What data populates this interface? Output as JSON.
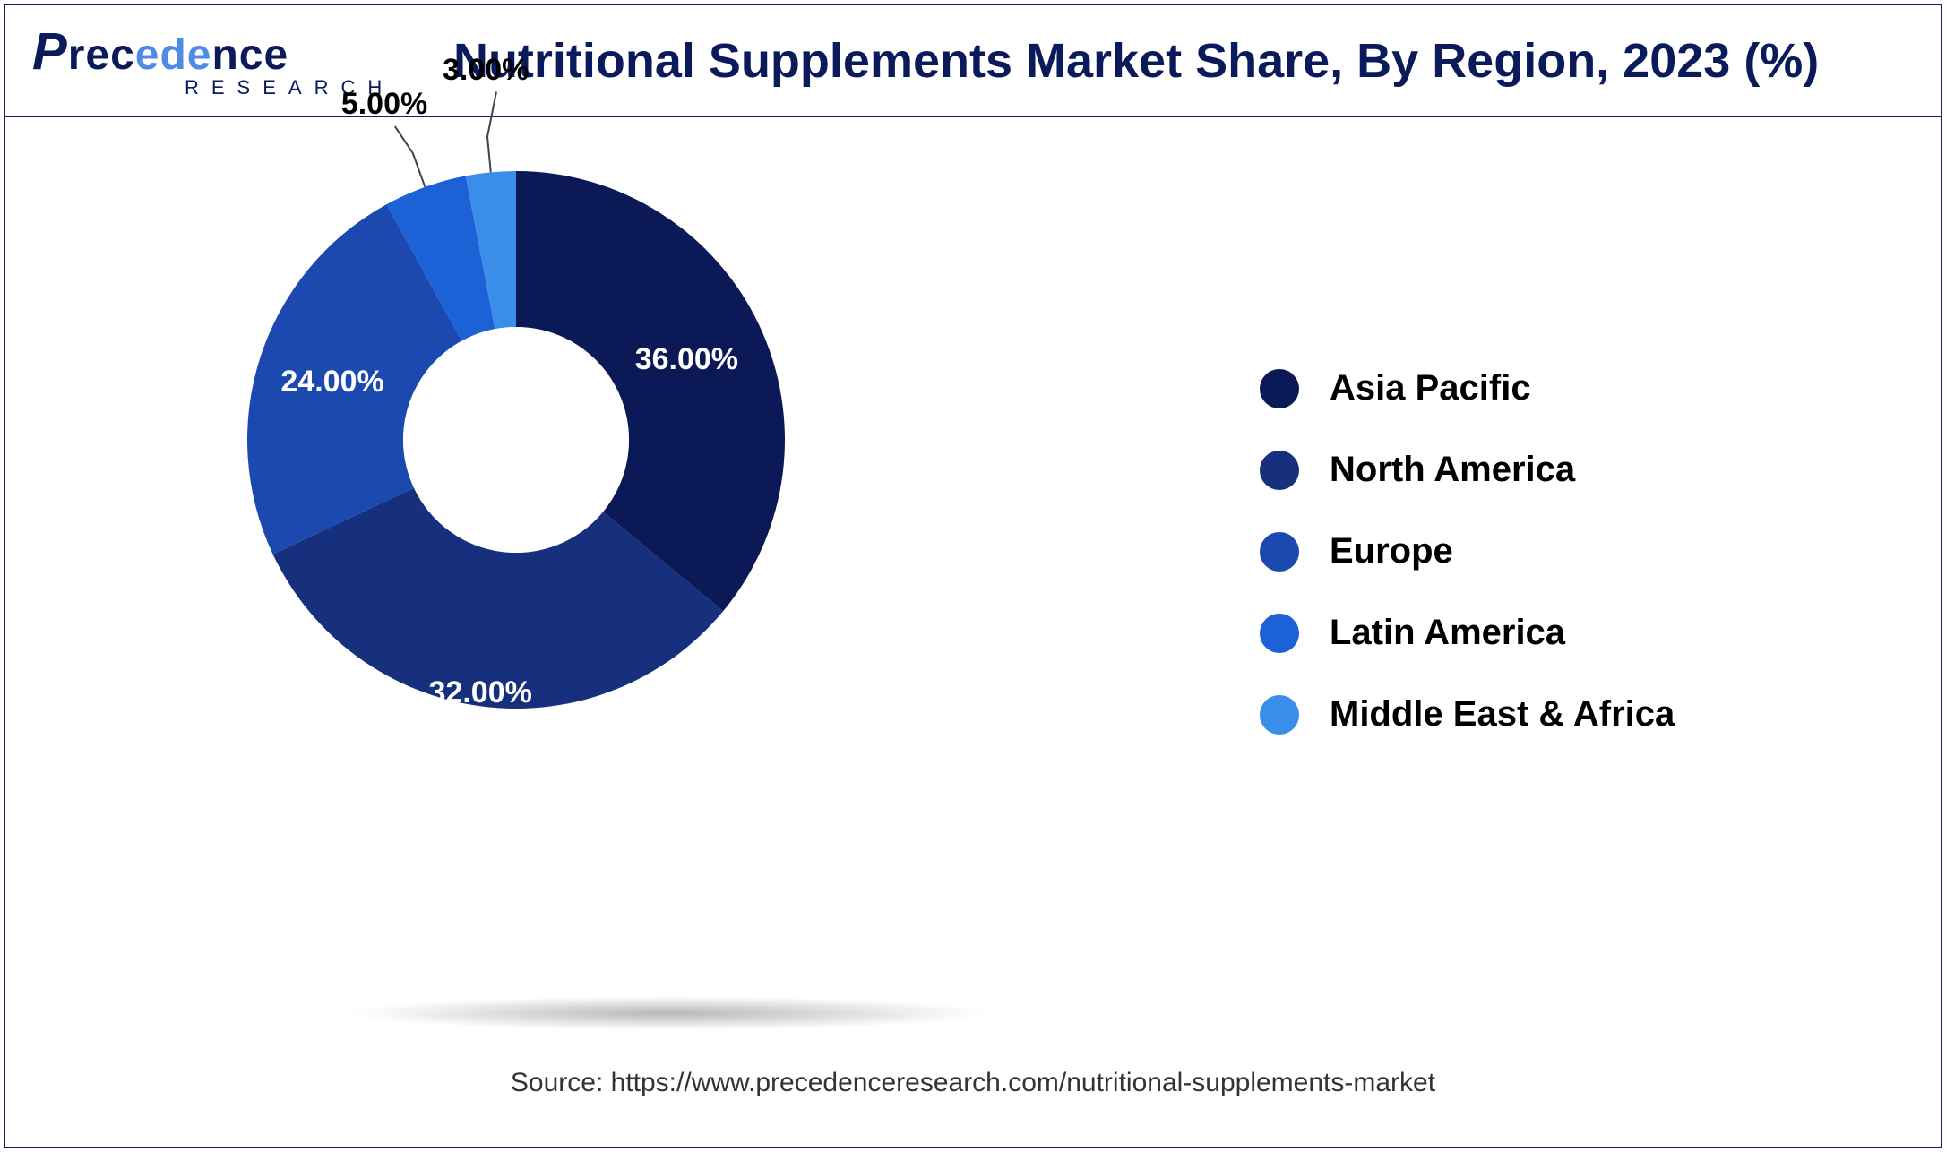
{
  "logo": {
    "brand_full": "Precedence",
    "sub": "RESEARCH"
  },
  "title": "Nutritional Supplements Market Share, By Region, 2023 (%)",
  "source": "Source: https://www.precedenceresearch.com/nutritional-supplements-market",
  "chart": {
    "type": "donut",
    "inner_radius_pct": 0.42,
    "outer_radius_pct": 1.0,
    "background_color": "#ffffff",
    "label_fontsize": 34,
    "label_fontweight": 700,
    "legend_fontsize": 40,
    "legend_fontweight": 600,
    "title_fontsize": 54,
    "title_color": "#0a1a5a",
    "slices": [
      {
        "name": "Asia Pacific",
        "value": 36.0,
        "label": "36.00%",
        "color": "#0b1957",
        "label_color": "#ffffff",
        "label_pos": "inside"
      },
      {
        "name": "North America",
        "value": 32.0,
        "label": "32.00%",
        "color": "#17307e",
        "label_color": "#ffffff",
        "label_pos": "inside"
      },
      {
        "name": "Europe",
        "value": 24.0,
        "label": "24.00%",
        "color": "#1c49b0",
        "label_color": "#ffffff",
        "label_pos": "inside"
      },
      {
        "name": "Latin America",
        "value": 5.0,
        "label": "5.00%",
        "color": "#1c61d6",
        "label_color": "#000000",
        "label_pos": "outside"
      },
      {
        "name": "Middle East & Africa",
        "value": 3.0,
        "label": "3.00%",
        "color": "#3a8de8",
        "label_color": "#000000",
        "label_pos": "outside"
      }
    ]
  }
}
